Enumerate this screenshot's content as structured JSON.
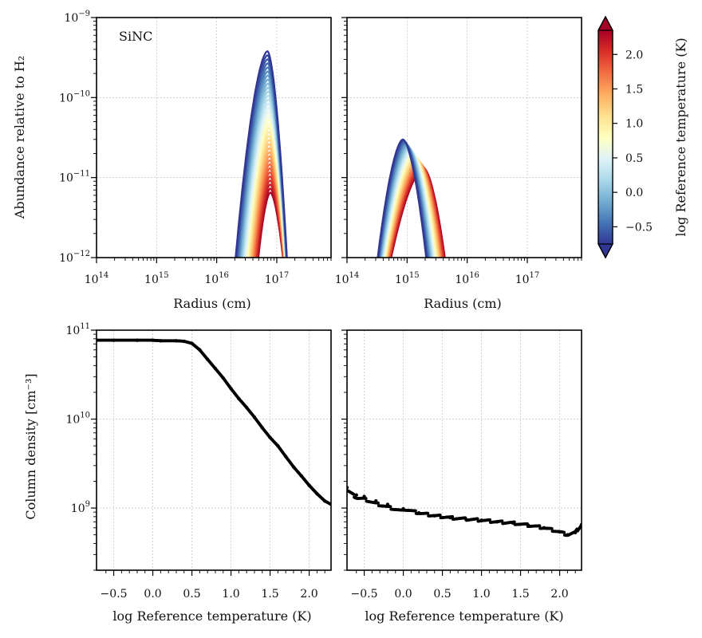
{
  "chart_data": [
    {
      "id": "top-left",
      "type": "line",
      "annotation": "SiNC",
      "xlabel": "Radius (cm)",
      "ylabel": "Abundance relative to H₂",
      "xscale": "log",
      "yscale": "log",
      "xlim": [
        100000000000000.0,
        8e+17
      ],
      "ylim": [
        1e-12,
        1e-09
      ],
      "xticks": [
        {
          "base": "10",
          "exp": "14"
        },
        {
          "base": "10",
          "exp": "15"
        },
        {
          "base": "10",
          "exp": "16"
        },
        {
          "base": "10",
          "exp": "17"
        }
      ],
      "yticks": [
        {
          "base": "10",
          "exp": "−12"
        },
        {
          "base": "10",
          "exp": "−11"
        },
        {
          "base": "10",
          "exp": "−10"
        },
        {
          "base": "10",
          "exp": "−9"
        }
      ],
      "curve_family": {
        "log_temp_range": [
          -0.75,
          2.35
        ],
        "low_temp": {
          "peak_radius": 7e+16,
          "peak_abundance": 3.8e-10,
          "rise_from": 1.9e+16,
          "fall_to": 1.55e+17
        },
        "high_temp": {
          "peak_radius": 7.8e+16,
          "peak_abundance": 6.5e-12,
          "rise_from": 4.5e+16,
          "fall_to": 1.4e+17
        }
      }
    },
    {
      "id": "top-right",
      "type": "line",
      "xlabel": "Radius (cm)",
      "xscale": "log",
      "yscale": "log",
      "xlim": [
        100000000000000.0,
        8e+17
      ],
      "ylim": [
        1e-12,
        1e-09
      ],
      "xticks": [
        {
          "base": "10",
          "exp": "14"
        },
        {
          "base": "10",
          "exp": "15"
        },
        {
          "base": "10",
          "exp": "16"
        },
        {
          "base": "10",
          "exp": "17"
        }
      ],
      "curve_family": {
        "log_temp_range": [
          -0.75,
          2.35
        ],
        "low_temp": {
          "peak_radius": 850000000000000.0,
          "peak_abundance": 3e-11,
          "rise_from": 290000000000000.0,
          "fall_to": 2300000000000000.0
        },
        "high_temp": {
          "peak_radius": 1900000000000000.0,
          "peak_abundance": 1.3e-11,
          "rise_from": 450000000000000.0,
          "fall_to": 4800000000000000.0
        }
      }
    },
    {
      "id": "bottom-left",
      "type": "scatter",
      "xlabel": "log Reference temperature (K)",
      "ylabel": "Column density [cm⁻³]",
      "yscale": "log",
      "xlim": [
        -0.72,
        2.28
      ],
      "ylim": [
        200000000.0,
        100000000000.0
      ],
      "xticks": [
        "−0.5",
        "0.0",
        "0.5",
        "1.0",
        "1.5",
        "2.0"
      ],
      "yticks": [
        {
          "base": "10",
          "exp": "9"
        },
        {
          "base": "10",
          "exp": "10"
        },
        {
          "base": "10",
          "exp": "11"
        }
      ],
      "x": [
        -0.72,
        -0.5,
        -0.2,
        0.0,
        0.1,
        0.3,
        0.4,
        0.5,
        0.6,
        0.7,
        0.8,
        0.9,
        1.0,
        1.1,
        1.2,
        1.3,
        1.4,
        1.5,
        1.6,
        1.7,
        1.8,
        1.9,
        2.0,
        2.1,
        2.2,
        2.28
      ],
      "y": [
        77000000000.0,
        77000000000.0,
        77000000000.0,
        77000000000.0,
        76000000000.0,
        76000000000.0,
        75000000000.0,
        71000000000.0,
        60000000000.0,
        47000000000.0,
        37000000000.0,
        29000000000.0,
        22000000000.0,
        17000000000.0,
        13500000000.0,
        10500000000.0,
        8000000000.0,
        6200000000.0,
        5000000000.0,
        3800000000.0,
        2900000000.0,
        2300000000.0,
        1800000000.0,
        1450000000.0,
        1200000000.0,
        1100000000.0
      ]
    },
    {
      "id": "bottom-right",
      "type": "scatter",
      "xlabel": "log Reference temperature (K)",
      "yscale": "log",
      "xlim": [
        -0.72,
        2.28
      ],
      "ylim": [
        200000000.0,
        100000000000.0
      ],
      "xticks": [
        "−0.5",
        "0.0",
        "0.5",
        "1.0",
        "1.5",
        "2.0"
      ],
      "x": [
        -0.72,
        -0.6,
        -0.5,
        -0.35,
        -0.2,
        0.0,
        0.2,
        0.4,
        0.6,
        0.8,
        1.0,
        1.2,
        1.4,
        1.6,
        1.8,
        2.0,
        2.1,
        2.2,
        2.28
      ],
      "y": [
        1700000000.0,
        1400000000.0,
        1350000000.0,
        1200000000.0,
        1100000000.0,
        980000000.0,
        880000000.0,
        820000000.0,
        780000000.0,
        750000000.0,
        730000000.0,
        700000000.0,
        680000000.0,
        640000000.0,
        600000000.0,
        540000000.0,
        500000000.0,
        530000000.0,
        650000000.0
      ]
    }
  ],
  "colorbar": {
    "label": "log Reference temperature (K)",
    "range": [
      -0.75,
      2.35
    ],
    "ticks": [
      "−0.5",
      "0.0",
      "0.5",
      "1.0",
      "1.5",
      "2.0"
    ],
    "colors": [
      "#313695",
      "#4575b4",
      "#74add1",
      "#abd9e9",
      "#e0f3f8",
      "#ffffbf",
      "#fee090",
      "#fdae61",
      "#f46d43",
      "#d73027",
      "#a50026"
    ]
  }
}
